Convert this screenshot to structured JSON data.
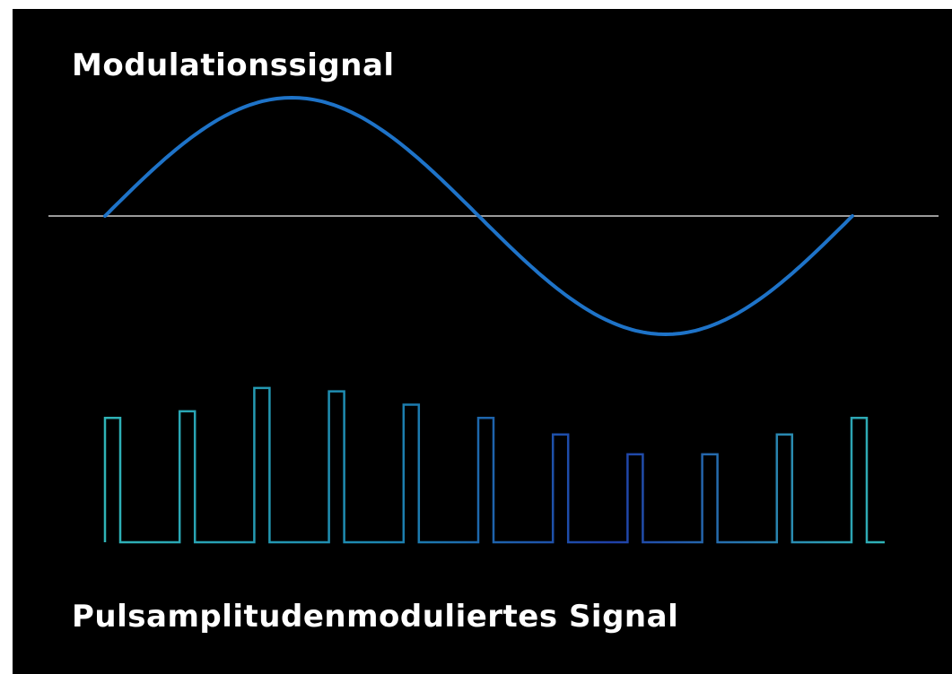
{
  "labels": {
    "modulation_signal": "Modulationssignal",
    "pam_signal": "Pulsamplitudenmodulierte​s Signal"
  },
  "colors": {
    "background": "#000000",
    "text": "#ffffff",
    "axis": "#9a9a9a",
    "sine": "#1e73c8",
    "pulse_gradient_start": "#2fb3b6",
    "pulse_gradient_end": "#1f3fa8"
  },
  "modulation_wave": {
    "shape": "sine",
    "periods": 1
  },
  "pulses": {
    "count": 11,
    "relative_heights": [
      0.75,
      0.79,
      0.93,
      0.91,
      0.83,
      0.75,
      0.65,
      0.53,
      0.53,
      0.65,
      0.75
    ]
  }
}
